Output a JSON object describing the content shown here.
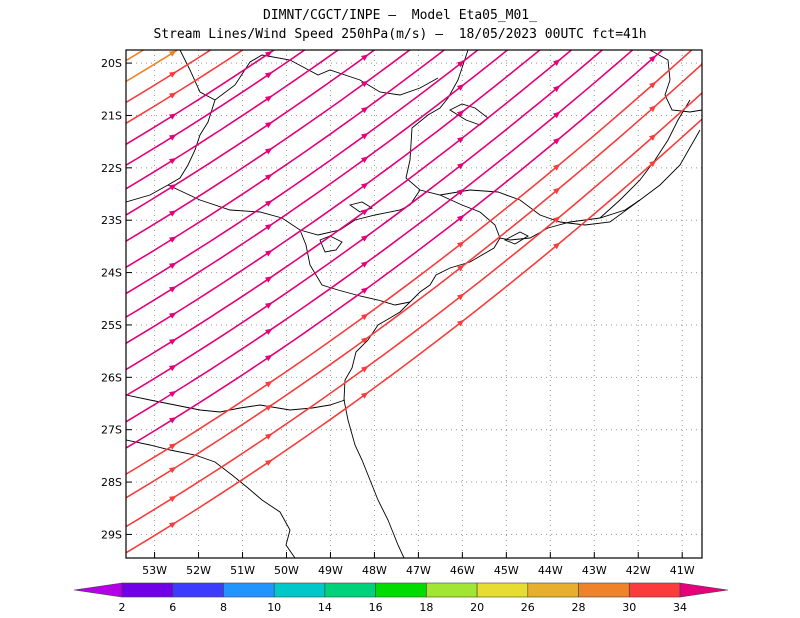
{
  "header": {
    "line1": "DIMNT/CGCT/INPE —  Model Eta05_M01_",
    "line2": "Stream Lines/Wind Speed 250hPa(m/s) —  18/05/2023 00UTC fct=41h"
  },
  "map": {
    "lon_range": [
      -53.65,
      -40.55
    ],
    "lat_range": [
      -29.45,
      -19.75
    ],
    "lat_labels": [
      {
        "lat": -20,
        "label": "20S"
      },
      {
        "lat": -21,
        "label": "21S"
      },
      {
        "lat": -22,
        "label": "22S"
      },
      {
        "lat": -23,
        "label": "23S"
      },
      {
        "lat": -24,
        "label": "24S"
      },
      {
        "lat": -25,
        "label": "25S"
      },
      {
        "lat": -26,
        "label": "26S"
      },
      {
        "lat": -27,
        "label": "27S"
      },
      {
        "lat": -28,
        "label": "28S"
      },
      {
        "lat": -29,
        "label": "29S"
      }
    ],
    "lon_labels": [
      {
        "lon": -53,
        "label": "53W"
      },
      {
        "lon": -52,
        "label": "52W"
      },
      {
        "lon": -51,
        "label": "51W"
      },
      {
        "lon": -50,
        "label": "50W"
      },
      {
        "lon": -49,
        "label": "49W"
      },
      {
        "lon": -48,
        "label": "48W"
      },
      {
        "lon": -47,
        "label": "47W"
      },
      {
        "lon": -46,
        "label": "46W"
      },
      {
        "lon": -45,
        "label": "45W"
      },
      {
        "lon": -44,
        "label": "44W"
      },
      {
        "lon": -43,
        "label": "43W"
      },
      {
        "lon": -42,
        "label": "42W"
      },
      {
        "lon": -41,
        "label": "41W"
      }
    ],
    "grid": true,
    "streamlines": [
      {
        "start_lat": -19.95,
        "speed": 28
      },
      {
        "start_lat": -20.35,
        "speed": 28
      },
      {
        "start_lat": -20.75,
        "speed": 30
      },
      {
        "start_lat": -21.15,
        "speed": 30
      },
      {
        "start_lat": -21.55,
        "speed": 34
      },
      {
        "start_lat": -21.95,
        "speed": 34
      },
      {
        "start_lat": -22.4,
        "speed": 34
      },
      {
        "start_lat": -22.9,
        "speed": 34
      },
      {
        "start_lat": -23.4,
        "speed": 34
      },
      {
        "start_lat": -23.9,
        "speed": 34
      },
      {
        "start_lat": -24.4,
        "speed": 36
      },
      {
        "start_lat": -24.85,
        "speed": 36
      },
      {
        "start_lat": -25.35,
        "speed": 34
      },
      {
        "start_lat": -25.85,
        "speed": 34
      },
      {
        "start_lat": -26.35,
        "speed": 34
      },
      {
        "start_lat": -26.85,
        "speed": 34
      },
      {
        "start_lat": -27.35,
        "speed": 34
      },
      {
        "start_lat": -27.85,
        "speed": 30
      },
      {
        "start_lat": -28.3,
        "speed": 30
      },
      {
        "start_lat": -28.85,
        "speed": 30
      },
      {
        "start_lat": -29.35,
        "speed": 30
      }
    ]
  },
  "colorbar": {
    "labels": [
      "2",
      "6",
      "8",
      "10",
      "14",
      "16",
      "18",
      "20",
      "26",
      "28",
      "30",
      "34"
    ],
    "colors": [
      "#b400e6",
      "#7000e6",
      "#3c3cff",
      "#1f96ff",
      "#00c8c8",
      "#00d27c",
      "#00dc00",
      "#a0e632",
      "#e6dc32",
      "#e6af2d",
      "#f08228",
      "#fa3c3c",
      "#e6007a"
    ]
  }
}
